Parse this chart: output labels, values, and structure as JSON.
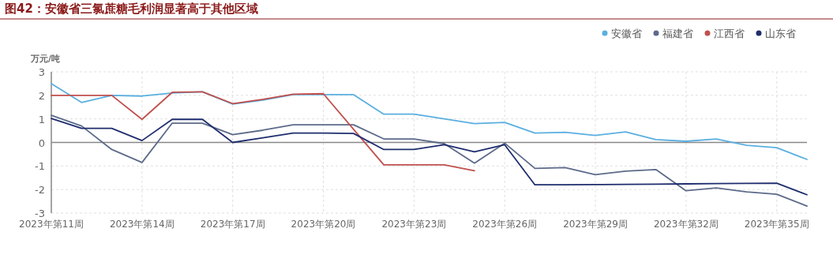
{
  "chart_data": {
    "type": "line",
    "title": "图42：安徽省三氯蔗糖毛利润显著高于其他区域",
    "ylabel": "万元/吨",
    "categories": [
      "2023年第11周",
      null,
      null,
      "2023年第14周",
      null,
      null,
      "2023年第17周",
      null,
      null,
      "2023年第20周",
      null,
      null,
      "2023年第23周",
      null,
      null,
      "2023年第26周",
      null,
      null,
      "2023年第29周",
      null,
      null,
      "2023年第32周",
      null,
      null,
      "2023年第35周",
      null
    ],
    "series": [
      {
        "name": "安徽省",
        "color": "#5aafe0",
        "values": [
          2.5,
          1.7,
          2.0,
          1.97,
          2.1,
          2.15,
          1.63,
          1.8,
          2.03,
          2.03,
          2.03,
          1.2,
          1.2,
          1.0,
          0.8,
          0.85,
          0.4,
          0.43,
          0.3,
          0.45,
          0.12,
          0.05,
          0.15,
          -0.12,
          -0.22,
          -0.72
        ]
      },
      {
        "name": "福建省",
        "color": "#5c6a8a",
        "values": [
          1.15,
          0.7,
          -0.3,
          -0.85,
          0.82,
          0.82,
          0.33,
          0.52,
          0.75,
          0.75,
          0.75,
          0.15,
          0.15,
          -0.05,
          -0.88,
          -0.03,
          -1.1,
          -1.07,
          -1.37,
          -1.22,
          -1.15,
          -2.05,
          -1.93,
          -2.1,
          -2.2,
          -2.7
        ]
      },
      {
        "name": "江西省",
        "color": "#c0504d",
        "values": [
          2.0,
          2.0,
          2.0,
          0.98,
          2.13,
          2.15,
          1.65,
          1.83,
          2.05,
          2.07,
          0.56,
          -0.95,
          -0.95,
          -0.95,
          -1.2,
          null,
          null,
          null,
          null,
          null,
          null,
          null,
          null,
          null,
          null,
          null
        ]
      },
      {
        "name": "山东省",
        "color": "#1f2d6e",
        "values": [
          1.02,
          0.6,
          0.6,
          0.08,
          0.98,
          0.98,
          0.0,
          0.2,
          0.4,
          0.4,
          0.38,
          -0.3,
          -0.3,
          -0.1,
          -0.4,
          -0.1,
          -1.8,
          -1.8,
          -1.79,
          -1.78,
          -1.77,
          -1.76,
          -1.75,
          -1.74,
          -1.73,
          -2.22
        ]
      }
    ],
    "ylim": [
      -3,
      3
    ],
    "yticks": [
      -3,
      -2,
      -1,
      0,
      1,
      2,
      3
    ],
    "ref_lines": [
      {
        "axis": "y",
        "value": 0,
        "color": "#888888"
      }
    ],
    "grid": true,
    "legend": "top right",
    "marker": "none",
    "line_style": "solid"
  }
}
